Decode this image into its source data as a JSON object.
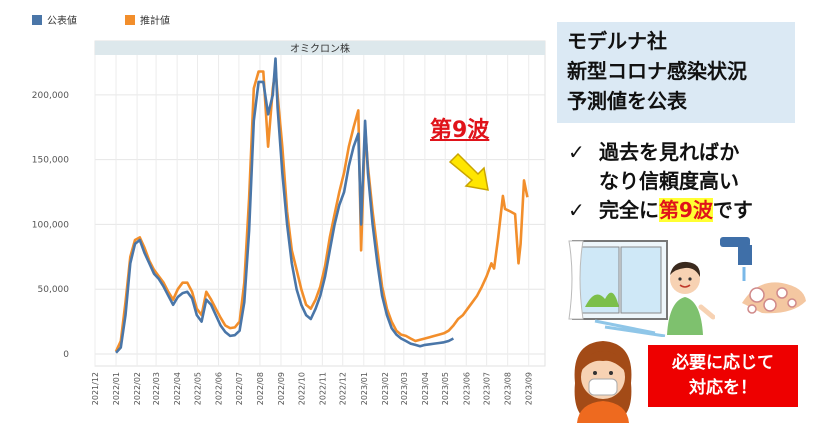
{
  "legend": {
    "official_label": "公表値",
    "estimate_label": "推計値",
    "official_color": "#4a76a8",
    "estimate_color": "#f28e2b"
  },
  "callout": {
    "wave9_label": "第9波",
    "arrow_icon": "yellow-arrow-icon"
  },
  "title_box": {
    "lines": [
      "モデルナ社",
      "新型コロナ感染状況",
      "予測値を公表"
    ]
  },
  "bullets": {
    "check_icon": "checkmark-icon",
    "item1_line1": "過去を見ればか",
    "item1_line2": "なり信頼度高い",
    "item2_prefix": "完全に",
    "item2_highlight": "第9波",
    "item2_suffix": "です"
  },
  "notice": {
    "line1": "必要に応じて",
    "line2": "対応を！"
  },
  "chart_data": {
    "type": "line",
    "band_label": "オミクロン株",
    "ylim": [
      0,
      230000
    ],
    "yticks": [
      0,
      50000,
      100000,
      150000,
      200000
    ],
    "ytick_labels": [
      "0",
      "50,000",
      "100,000",
      "150,000",
      "200,000"
    ],
    "xticks": [
      "2021/12",
      "2022/01",
      "2022/02",
      "2022/03",
      "2022/04",
      "2022/05",
      "2022/06",
      "2022/07",
      "2022/08",
      "2022/09",
      "2022/10",
      "2022/11",
      "2022/12",
      "2023/01",
      "2023/02",
      "2023/03",
      "2023/04",
      "2023/05",
      "2023/06",
      "2023/07",
      "2023/08",
      "2023/09"
    ],
    "grid": true,
    "series": [
      {
        "name": "公表値",
        "color": "#4a76a8",
        "points": [
          [
            "2022-01-01",
            1000
          ],
          [
            "2022-01-08",
            5000
          ],
          [
            "2022-01-15",
            30000
          ],
          [
            "2022-01-22",
            70000
          ],
          [
            "2022-01-29",
            85000
          ],
          [
            "2022-02-05",
            88000
          ],
          [
            "2022-02-12",
            78000
          ],
          [
            "2022-02-19",
            70000
          ],
          [
            "2022-02-26",
            62000
          ],
          [
            "2022-03-05",
            58000
          ],
          [
            "2022-03-12",
            52000
          ],
          [
            "2022-03-19",
            45000
          ],
          [
            "2022-03-26",
            38000
          ],
          [
            "2022-04-02",
            44000
          ],
          [
            "2022-04-09",
            47000
          ],
          [
            "2022-04-16",
            48000
          ],
          [
            "2022-04-23",
            43000
          ],
          [
            "2022-04-30",
            30000
          ],
          [
            "2022-05-07",
            25000
          ],
          [
            "2022-05-14",
            42000
          ],
          [
            "2022-05-21",
            38000
          ],
          [
            "2022-05-28",
            30000
          ],
          [
            "2022-06-04",
            22000
          ],
          [
            "2022-06-11",
            17000
          ],
          [
            "2022-06-18",
            14000
          ],
          [
            "2022-06-25",
            14500
          ],
          [
            "2022-07-02",
            18000
          ],
          [
            "2022-07-09",
            40000
          ],
          [
            "2022-07-16",
            95000
          ],
          [
            "2022-07-23",
            180000
          ],
          [
            "2022-07-30",
            210000
          ],
          [
            "2022-08-06",
            210000
          ],
          [
            "2022-08-13",
            185000
          ],
          [
            "2022-08-20",
            200000
          ],
          [
            "2022-08-24",
            228000
          ],
          [
            "2022-08-27",
            190000
          ],
          [
            "2022-09-03",
            140000
          ],
          [
            "2022-09-10",
            100000
          ],
          [
            "2022-09-17",
            70000
          ],
          [
            "2022-09-24",
            50000
          ],
          [
            "2022-10-01",
            38000
          ],
          [
            "2022-10-08",
            30000
          ],
          [
            "2022-10-15",
            27000
          ],
          [
            "2022-10-22",
            35000
          ],
          [
            "2022-10-29",
            45000
          ],
          [
            "2022-11-05",
            60000
          ],
          [
            "2022-11-12",
            80000
          ],
          [
            "2022-11-19",
            100000
          ],
          [
            "2022-11-26",
            115000
          ],
          [
            "2022-12-03",
            125000
          ],
          [
            "2022-12-10",
            145000
          ],
          [
            "2022-12-17",
            160000
          ],
          [
            "2022-12-24",
            170000
          ],
          [
            "2022-12-28",
            100000
          ],
          [
            "2023-01-03",
            180000
          ],
          [
            "2023-01-07",
            140000
          ],
          [
            "2023-01-14",
            100000
          ],
          [
            "2023-01-21",
            70000
          ],
          [
            "2023-01-28",
            45000
          ],
          [
            "2023-02-04",
            30000
          ],
          [
            "2023-02-11",
            20000
          ],
          [
            "2023-02-18",
            15000
          ],
          [
            "2023-02-25",
            12000
          ],
          [
            "2023-03-04",
            10000
          ],
          [
            "2023-03-11",
            8000
          ],
          [
            "2023-03-18",
            7000
          ],
          [
            "2023-03-25",
            6000
          ],
          [
            "2023-04-01",
            7000
          ],
          [
            "2023-04-08",
            7500
          ],
          [
            "2023-04-15",
            8000
          ],
          [
            "2023-04-22",
            8500
          ],
          [
            "2023-04-29",
            9000
          ],
          [
            "2023-05-06",
            10000
          ],
          [
            "2023-05-13",
            12000
          ]
        ]
      },
      {
        "name": "推計値",
        "color": "#f28e2b",
        "points": [
          [
            "2022-01-01",
            2000
          ],
          [
            "2022-01-08",
            10000
          ],
          [
            "2022-01-15",
            40000
          ],
          [
            "2022-01-22",
            75000
          ],
          [
            "2022-01-29",
            88000
          ],
          [
            "2022-02-05",
            90000
          ],
          [
            "2022-02-12",
            82000
          ],
          [
            "2022-02-19",
            72000
          ],
          [
            "2022-02-26",
            65000
          ],
          [
            "2022-03-05",
            60000
          ],
          [
            "2022-03-12",
            55000
          ],
          [
            "2022-03-19",
            48000
          ],
          [
            "2022-03-26",
            42000
          ],
          [
            "2022-04-02",
            50000
          ],
          [
            "2022-04-09",
            55000
          ],
          [
            "2022-04-16",
            55000
          ],
          [
            "2022-04-23",
            48000
          ],
          [
            "2022-04-30",
            35000
          ],
          [
            "2022-05-07",
            30000
          ],
          [
            "2022-05-14",
            48000
          ],
          [
            "2022-05-21",
            42000
          ],
          [
            "2022-05-28",
            35000
          ],
          [
            "2022-06-04",
            28000
          ],
          [
            "2022-06-11",
            22000
          ],
          [
            "2022-06-18",
            20000
          ],
          [
            "2022-06-25",
            20500
          ],
          [
            "2022-07-02",
            25000
          ],
          [
            "2022-07-09",
            55000
          ],
          [
            "2022-07-16",
            120000
          ],
          [
            "2022-07-23",
            205000
          ],
          [
            "2022-07-30",
            218000
          ],
          [
            "2022-08-06",
            218000
          ],
          [
            "2022-08-13",
            160000
          ],
          [
            "2022-08-20",
            205000
          ],
          [
            "2022-08-24",
            220000
          ],
          [
            "2022-08-27",
            200000
          ],
          [
            "2022-09-03",
            160000
          ],
          [
            "2022-09-10",
            110000
          ],
          [
            "2022-09-17",
            80000
          ],
          [
            "2022-09-24",
            65000
          ],
          [
            "2022-10-01",
            50000
          ],
          [
            "2022-10-08",
            38000
          ],
          [
            "2022-10-15",
            35000
          ],
          [
            "2022-10-22",
            42000
          ],
          [
            "2022-10-29",
            52000
          ],
          [
            "2022-11-05",
            68000
          ],
          [
            "2022-11-12",
            90000
          ],
          [
            "2022-11-19",
            108000
          ],
          [
            "2022-11-26",
            125000
          ],
          [
            "2022-12-03",
            140000
          ],
          [
            "2022-12-10",
            160000
          ],
          [
            "2022-12-17",
            175000
          ],
          [
            "2022-12-24",
            188000
          ],
          [
            "2022-12-28",
            80000
          ],
          [
            "2023-01-03",
            175000
          ],
          [
            "2023-01-07",
            145000
          ],
          [
            "2023-01-14",
            110000
          ],
          [
            "2023-01-21",
            80000
          ],
          [
            "2023-01-28",
            52000
          ],
          [
            "2023-02-04",
            35000
          ],
          [
            "2023-02-11",
            25000
          ],
          [
            "2023-02-18",
            18000
          ],
          [
            "2023-02-25",
            15000
          ],
          [
            "2023-03-04",
            14000
          ],
          [
            "2023-03-11",
            12000
          ],
          [
            "2023-03-18",
            10000
          ],
          [
            "2023-03-25",
            11000
          ],
          [
            "2023-04-01",
            12000
          ],
          [
            "2023-04-08",
            13000
          ],
          [
            "2023-04-15",
            14000
          ],
          [
            "2023-04-22",
            15000
          ],
          [
            "2023-04-29",
            16000
          ],
          [
            "2023-05-06",
            18000
          ],
          [
            "2023-05-13",
            22000
          ],
          [
            "2023-05-20",
            27000
          ],
          [
            "2023-05-27",
            30000
          ],
          [
            "2023-06-03",
            35000
          ],
          [
            "2023-06-10",
            40000
          ],
          [
            "2023-06-17",
            45000
          ],
          [
            "2023-06-24",
            52000
          ],
          [
            "2023-07-01",
            60000
          ],
          [
            "2023-07-08",
            70000
          ],
          [
            "2023-07-12",
            66000
          ],
          [
            "2023-07-18",
            90000
          ],
          [
            "2023-07-25",
            122000
          ],
          [
            "2023-07-28",
            112000
          ],
          [
            "2023-08-05",
            110000
          ],
          [
            "2023-08-12",
            108000
          ],
          [
            "2023-08-17",
            70000
          ],
          [
            "2023-08-20",
            85000
          ],
          [
            "2023-08-25",
            134000
          ],
          [
            "2023-08-30",
            121000
          ]
        ]
      }
    ]
  }
}
